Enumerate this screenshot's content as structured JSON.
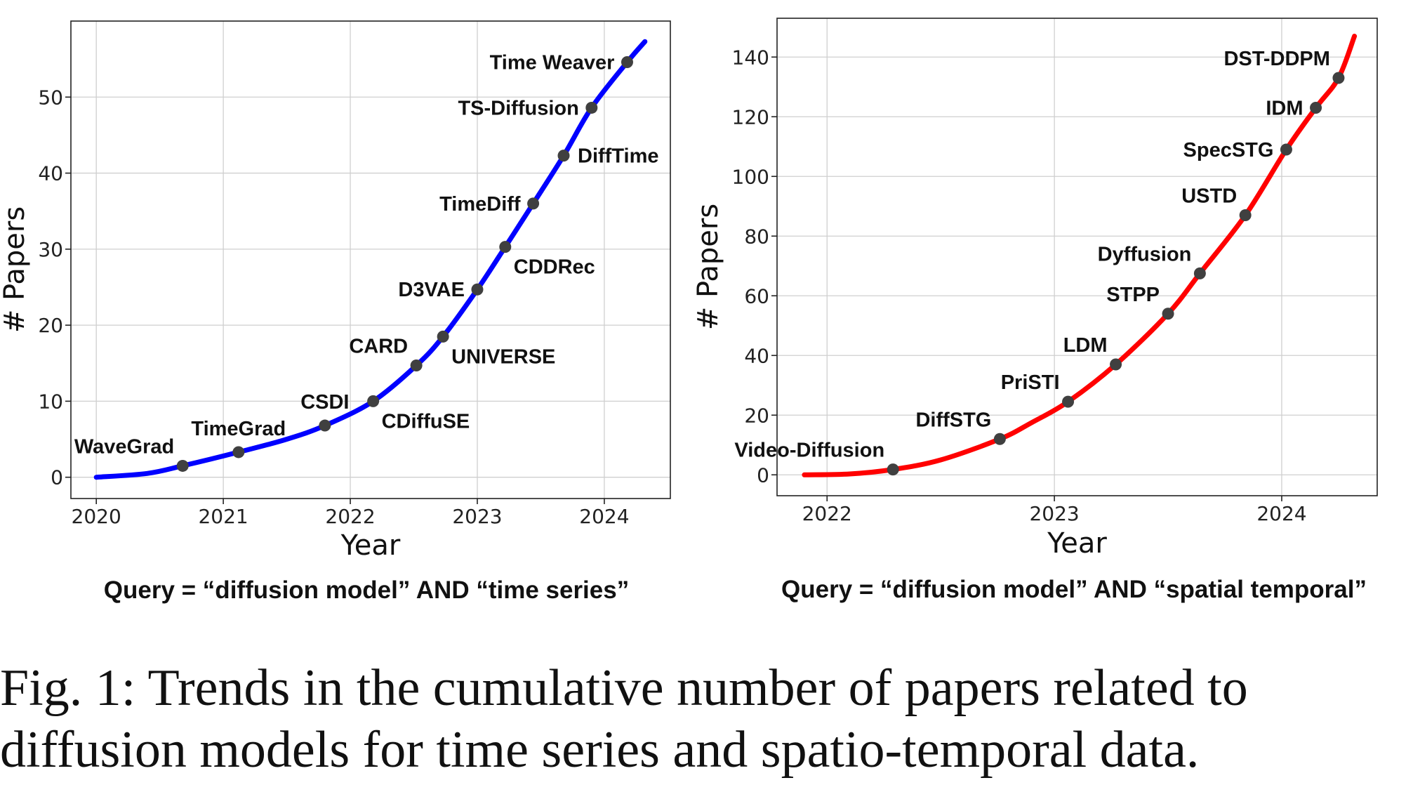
{
  "chart_data": [
    {
      "type": "line",
      "xlabel": "Year",
      "ylabel": "# Papers",
      "xlim": [
        2019.8,
        2024.52
      ],
      "ylim": [
        -2.8,
        60
      ],
      "xticks": [
        2020,
        2021,
        2022,
        2023,
        2024
      ],
      "yticks": [
        0,
        10,
        20,
        30,
        40,
        50
      ],
      "grid": true,
      "line_color": "#0000ff",
      "marker_color": "#404040",
      "curve": {
        "x": [
          2020.0,
          2020.4,
          2020.68,
          2021.12,
          2021.5,
          2021.8,
          2022.18,
          2022.52,
          2022.73,
          2023.0,
          2023.22,
          2023.44,
          2023.68,
          2023.9,
          2024.18,
          2024.32
        ],
        "y": [
          0,
          0.5,
          1.5,
          3.3,
          5.0,
          6.8,
          10.0,
          14.7,
          18.5,
          24.7,
          30.3,
          36.0,
          42.3,
          48.6,
          54.6,
          57.3
        ]
      },
      "points": [
        {
          "label": "WaveGrad",
          "x": 2020.68,
          "y": 1.5,
          "label_pos": "above-left"
        },
        {
          "label": "TimeGrad",
          "x": 2021.12,
          "y": 3.3,
          "label_pos": "above"
        },
        {
          "label": "CSDI",
          "x": 2021.8,
          "y": 6.8,
          "label_pos": "above"
        },
        {
          "label": "CDiffuSE",
          "x": 2022.18,
          "y": 10.0,
          "label_pos": "below-right"
        },
        {
          "label": "CARD",
          "x": 2022.52,
          "y": 14.7,
          "label_pos": "above-left"
        },
        {
          "label": "UNIVERSE",
          "x": 2022.73,
          "y": 18.5,
          "label_pos": "below-right"
        },
        {
          "label": "D3VAE",
          "x": 2023.0,
          "y": 24.7,
          "label_pos": "left"
        },
        {
          "label": "CDDRec",
          "x": 2023.22,
          "y": 30.3,
          "label_pos": "below-right"
        },
        {
          "label": "TimeDiff",
          "x": 2023.44,
          "y": 36.0,
          "label_pos": "left"
        },
        {
          "label": "DiffTime",
          "x": 2023.68,
          "y": 42.3,
          "label_pos": "right"
        },
        {
          "label": "TS-Diffusion",
          "x": 2023.9,
          "y": 48.6,
          "label_pos": "left"
        },
        {
          "label": "Time Weaver",
          "x": 2024.18,
          "y": 54.6,
          "label_pos": "left"
        }
      ],
      "query": "Query = “diffusion model” AND “time series”"
    },
    {
      "type": "line",
      "xlabel": "Year",
      "ylabel": "# Papers",
      "xlim": [
        2021.78,
        2024.42
      ],
      "ylim": [
        -7,
        153
      ],
      "xticks": [
        2022,
        2023,
        2024
      ],
      "yticks": [
        0,
        20,
        40,
        60,
        80,
        100,
        120,
        140
      ],
      "grid": true,
      "line_color": "#ff0000",
      "marker_color": "#404040",
      "curve": {
        "x": [
          2021.9,
          2022.1,
          2022.29,
          2022.5,
          2022.76,
          2022.9,
          2023.06,
          2023.27,
          2023.5,
          2023.64,
          2023.84,
          2024.02,
          2024.15,
          2024.25,
          2024.32
        ],
        "y": [
          0,
          0.3,
          1.8,
          5.0,
          12.0,
          17.5,
          24.5,
          37.0,
          54.0,
          67.5,
          87.0,
          109.0,
          123.0,
          133.0,
          147.0
        ]
      },
      "points": [
        {
          "label": "Video-Diffusion",
          "x": 2022.29,
          "y": 1.8,
          "label_pos": "above-left"
        },
        {
          "label": "DiffSTG",
          "x": 2022.76,
          "y": 12.0,
          "label_pos": "above-left"
        },
        {
          "label": "PriSTI",
          "x": 2023.06,
          "y": 24.5,
          "label_pos": "above-left"
        },
        {
          "label": "LDM",
          "x": 2023.27,
          "y": 37.0,
          "label_pos": "above-left"
        },
        {
          "label": "STPP",
          "x": 2023.5,
          "y": 54.0,
          "label_pos": "above-left"
        },
        {
          "label": "Dyffusion",
          "x": 2023.64,
          "y": 67.5,
          "label_pos": "above-left"
        },
        {
          "label": "USTD",
          "x": 2023.84,
          "y": 87.0,
          "label_pos": "above-left"
        },
        {
          "label": "SpecSTG",
          "x": 2024.02,
          "y": 109.0,
          "label_pos": "left"
        },
        {
          "label": "IDM",
          "x": 2024.15,
          "y": 123.0,
          "label_pos": "left"
        },
        {
          "label": "DST-DDPM",
          "x": 2024.25,
          "y": 133.0,
          "label_pos": "above-left"
        }
      ],
      "query": "Query = “diffusion model” AND “spatial temporal”"
    }
  ],
  "caption": {
    "line1": "Fig. 1: Trends in the cumulative number of papers related to",
    "line2": "diffusion models for time series and spatio-temporal data."
  }
}
